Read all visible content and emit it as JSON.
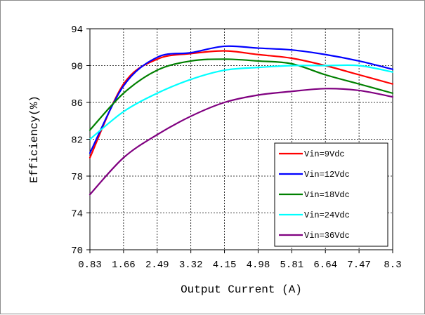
{
  "chart_data": {
    "type": "line",
    "title": "",
    "xlabel": "Output Current (A)",
    "ylabel": "Efficiency(%)",
    "x": [
      0.83,
      1.66,
      2.49,
      3.32,
      4.15,
      4.98,
      5.81,
      6.64,
      7.47,
      8.3
    ],
    "x_ticks": [
      "0.83",
      "1.66",
      "2.49",
      "3.32",
      "4.15",
      "4.98",
      "5.81",
      "6.64",
      "7.47",
      "8.3"
    ],
    "y_ticks": [
      "70",
      "74",
      "78",
      "82",
      "86",
      "90",
      "94"
    ],
    "xlim": [
      0.83,
      8.3
    ],
    "ylim": [
      70,
      94
    ],
    "grid": true,
    "legend_position": "bottom-right",
    "series": [
      {
        "name": "Vin=9Vdc",
        "color": "#ff0000",
        "values": [
          80.0,
          88.0,
          90.7,
          91.3,
          91.6,
          91.2,
          90.8,
          90.0,
          89.0,
          88.0
        ]
      },
      {
        "name": "Vin=12Vdc",
        "color": "#0000ff",
        "values": [
          80.5,
          87.8,
          90.9,
          91.4,
          92.1,
          91.9,
          91.7,
          91.2,
          90.5,
          89.6
        ]
      },
      {
        "name": "Vin=18Vdc",
        "color": "#008000",
        "values": [
          83.0,
          87.0,
          89.5,
          90.5,
          90.7,
          90.5,
          90.2,
          89.0,
          88.0,
          87.0
        ]
      },
      {
        "name": "Vin=24Vdc",
        "color": "#00ffff",
        "values": [
          82.0,
          85.0,
          87.0,
          88.5,
          89.5,
          89.8,
          90.0,
          90.0,
          90.0,
          89.3
        ]
      },
      {
        "name": "Vin=36Vdc",
        "color": "#800080",
        "values": [
          76.0,
          80.0,
          82.5,
          84.5,
          86.0,
          86.8,
          87.2,
          87.5,
          87.3,
          86.6
        ]
      }
    ]
  }
}
